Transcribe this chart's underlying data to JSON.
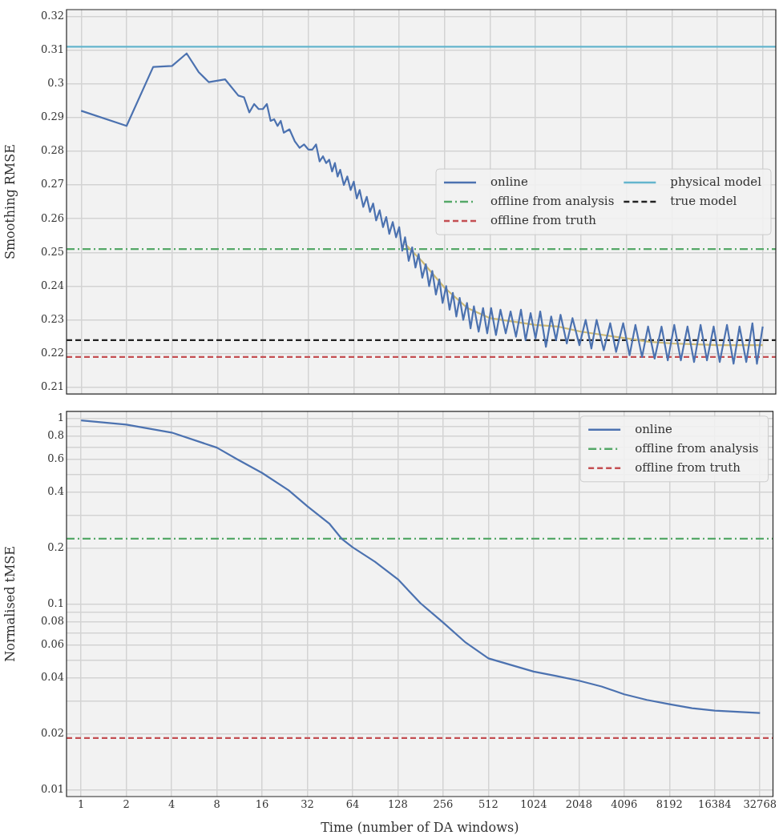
{
  "chart_data": [
    {
      "type": "line",
      "ylabel": "Smoothing RMSE",
      "log": "x",
      "grid": true,
      "legend": "center right",
      "tick_labels": "y",
      "xlim": [
        0.8,
        40000
      ],
      "xticks": [
        1,
        2,
        4,
        8,
        16,
        32,
        64,
        128,
        256,
        512,
        1024,
        2048,
        4096,
        8192,
        16384,
        32768
      ],
      "ylim": [
        0.208,
        0.322
      ],
      "yticks": [
        0.21,
        0.22,
        0.23,
        0.24,
        0.25,
        0.26,
        0.27,
        0.28,
        0.29,
        0.3,
        0.31,
        0.32
      ],
      "series": [
        {
          "name": "online",
          "color": "#4c72b0",
          "line_style": "solid",
          "x": [
            1,
            2,
            3,
            4,
            5,
            6,
            7,
            9,
            11,
            12,
            13,
            14,
            15,
            16,
            17,
            18,
            19,
            20,
            21,
            22,
            24,
            26,
            28,
            30,
            32,
            34,
            36,
            38,
            40,
            42,
            44,
            46,
            48,
            50,
            52,
            55,
            58,
            61,
            64,
            67,
            70,
            74,
            78,
            82,
            86,
            90,
            95,
            100,
            105,
            110,
            116,
            122,
            128,
            134,
            140,
            148,
            156,
            164,
            172,
            182,
            192,
            202,
            212,
            224,
            236,
            248,
            262,
            276,
            290,
            306,
            322,
            340,
            360,
            380,
            400,
            430,
            460,
            490,
            520,
            560,
            600,
            650,
            700,
            760,
            820,
            880,
            950,
            1024,
            1100,
            1200,
            1300,
            1400,
            1500,
            1650,
            1800,
            2000,
            2200,
            2400,
            2600,
            2900,
            3200,
            3500,
            3900,
            4300,
            4700,
            5200,
            5700,
            6300,
            7000,
            7700,
            8500,
            9400,
            10400,
            11500,
            12700,
            14000,
            15500,
            17000,
            19000,
            21000,
            23000,
            25500,
            28000,
            30000,
            32768
          ],
          "values": [
            0.292,
            0.2875,
            0.305,
            0.3053,
            0.309,
            0.3035,
            0.3005,
            0.3013,
            0.2965,
            0.296,
            0.2915,
            0.294,
            0.2925,
            0.2925,
            0.294,
            0.289,
            0.2895,
            0.2875,
            0.289,
            0.2855,
            0.2865,
            0.283,
            0.281,
            0.282,
            0.2805,
            0.2805,
            0.282,
            0.277,
            0.2785,
            0.2765,
            0.2775,
            0.274,
            0.2765,
            0.2725,
            0.2745,
            0.27,
            0.2725,
            0.2685,
            0.271,
            0.266,
            0.2685,
            0.2635,
            0.2665,
            0.262,
            0.2645,
            0.2595,
            0.2625,
            0.2575,
            0.2605,
            0.2555,
            0.259,
            0.2545,
            0.2575,
            0.2505,
            0.2545,
            0.2475,
            0.2515,
            0.2455,
            0.2495,
            0.2425,
            0.2465,
            0.24,
            0.2445,
            0.2375,
            0.242,
            0.235,
            0.24,
            0.233,
            0.238,
            0.231,
            0.2365,
            0.23,
            0.235,
            0.2275,
            0.234,
            0.2265,
            0.2335,
            0.226,
            0.2335,
            0.2255,
            0.233,
            0.226,
            0.2325,
            0.225,
            0.233,
            0.224,
            0.232,
            0.2245,
            0.2325,
            0.222,
            0.231,
            0.224,
            0.2315,
            0.223,
            0.2305,
            0.2225,
            0.23,
            0.2215,
            0.23,
            0.221,
            0.229,
            0.2205,
            0.229,
            0.2195,
            0.2285,
            0.219,
            0.228,
            0.2185,
            0.228,
            0.218,
            0.2285,
            0.218,
            0.228,
            0.2175,
            0.2285,
            0.218,
            0.228,
            0.2175,
            0.2285,
            0.217,
            0.228,
            0.2175,
            0.229,
            0.217,
            0.228
          ]
        },
        {
          "color": "#ccb974",
          "line_style": "solid",
          "x": [
            140,
            180,
            256,
            362,
            512,
            724,
            1024,
            1448,
            2048,
            2896,
            4096,
            5792,
            8192,
            16384,
            32768
          ],
          "values": [
            0.2525,
            0.2475,
            0.2395,
            0.2335,
            0.2305,
            0.2295,
            0.2285,
            0.228,
            0.2265,
            0.2255,
            0.2245,
            0.2235,
            0.223,
            0.2225,
            0.2225
          ]
        },
        {
          "name": "offline from analysis",
          "color": "#55a868",
          "line_style": "dashdot",
          "x": [
            0.8,
            40000
          ],
          "values": [
            0.251,
            0.251
          ]
        },
        {
          "name": "offline from truth",
          "color": "#c44e52",
          "line_style": "dashed",
          "x": [
            0.8,
            40000
          ],
          "values": [
            0.219,
            0.219
          ]
        },
        {
          "name": "physical model",
          "color": "#64b5cd",
          "line_style": "solid",
          "x": [
            0.8,
            40000
          ],
          "values": [
            0.311,
            0.311
          ]
        },
        {
          "name": "true model",
          "color": "#222222",
          "line_style": "dashed",
          "x": [
            0.8,
            40000
          ],
          "values": [
            0.224,
            0.224
          ]
        }
      ]
    },
    {
      "type": "line",
      "xlabel": "Time (number of DA windows)",
      "ylabel": "Normalised tMSE",
      "log": "xy",
      "grid": true,
      "legend": "top right",
      "xlim": [
        0.8,
        40000
      ],
      "xticks": [
        1,
        2,
        4,
        8,
        16,
        32,
        64,
        128,
        256,
        512,
        1024,
        2048,
        4096,
        8192,
        16384,
        32768
      ],
      "ylim": [
        0.0092,
        1.09
      ],
      "yticks": [
        0.01,
        0.02,
        {
          "value": 0.03,
          "label": null
        },
        0.04,
        {
          "value": 0.05,
          "label": null
        },
        0.06,
        {
          "value": 0.07,
          "label": null
        },
        0.08,
        {
          "value": 0.09,
          "label": null
        },
        0.1,
        0.2,
        {
          "value": 0.3,
          "label": null
        },
        0.4,
        {
          "value": 0.5,
          "label": null
        },
        0.6,
        {
          "value": 0.7,
          "label": null
        },
        0.8,
        {
          "value": 0.9,
          "label": null
        },
        1
      ],
      "series": [
        {
          "name": "online",
          "color": "#4c72b0",
          "line_style": "solid",
          "x": [
            1,
            2,
            4,
            8,
            11,
            16,
            24,
            32,
            45,
            54,
            64,
            90,
            128,
            181,
            256,
            362,
            512,
            724,
            1024,
            1448,
            2048,
            2896,
            4096,
            5792,
            8192,
            11585,
            16384,
            23170,
            32768
          ],
          "values": [
            0.974,
            0.924,
            0.838,
            0.695,
            0.6,
            0.508,
            0.41,
            0.336,
            0.27,
            0.225,
            0.202,
            0.169,
            0.136,
            0.101,
            0.0795,
            0.062,
            0.051,
            0.047,
            0.0433,
            0.041,
            0.0387,
            0.036,
            0.0327,
            0.0305,
            0.0289,
            0.0275,
            0.0267,
            0.0263,
            0.0259
          ]
        },
        {
          "name": "offline from analysis",
          "color": "#55a868",
          "line_style": "dashdot",
          "x": [
            0.8,
            40000
          ],
          "values": [
            0.225,
            0.225
          ]
        },
        {
          "name": "offline from truth",
          "color": "#c44e52",
          "line_style": "dashed",
          "x": [
            0.8,
            40000
          ],
          "values": [
            0.019,
            0.019
          ]
        }
      ]
    }
  ]
}
